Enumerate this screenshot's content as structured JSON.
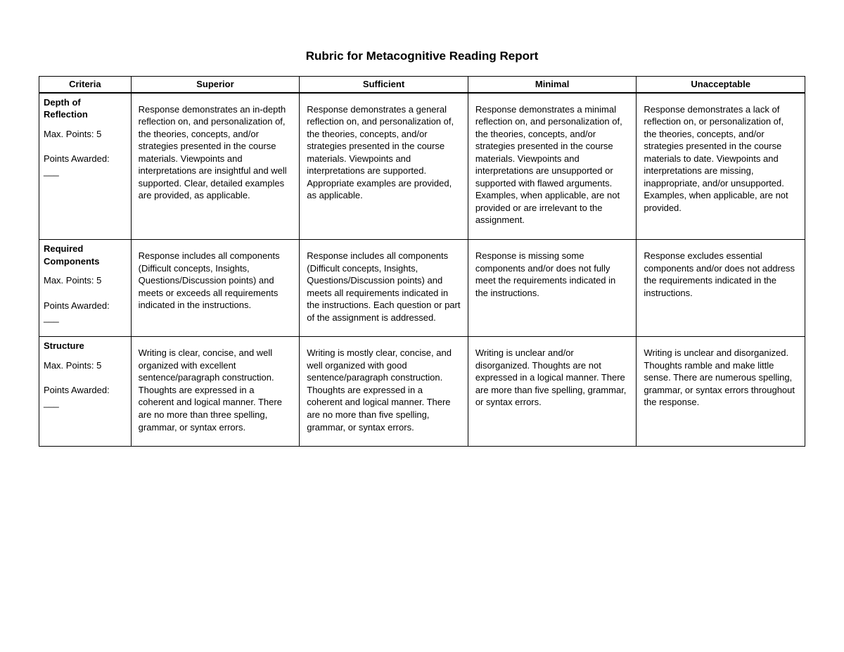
{
  "title": "Rubric for Metacognitive Reading Report",
  "columns": [
    "Criteria",
    "Superior",
    "Sufficient",
    "Minimal",
    "Unacceptable"
  ],
  "rows": [
    {
      "criteria_title": "Depth of Reflection",
      "max_points_label": "Max. Points: 5",
      "points_awarded_label": "Points Awarded: ___",
      "cells": [
        "Response demonstrates an in-depth reflection on, and personalization of, the theories, concepts, and/or strategies presented in the course materials. Viewpoints and interpretations are insightful and well supported. Clear, detailed examples are provided, as applicable.",
        "Response demonstrates a general reflection on, and personalization of, the theories, concepts, and/or strategies presented in the course materials. Viewpoints and interpretations are supported.  Appropriate examples are provided, as applicable.",
        "Response demonstrates a minimal reflection on, and personalization of, the theories, concepts, and/or strategies presented in the course materials. Viewpoints and interpretations are unsupported or supported with flawed arguments. Examples, when applicable, are not provided or are irrelevant to the assignment.",
        "Response demonstrates a lack of reflection on, or personalization of, the theories, concepts, and/or strategies presented in the course materials to date. Viewpoints and interpretations are missing, inappropriate, and/or unsupported. Examples, when applicable, are not provided."
      ]
    },
    {
      "criteria_title": "Required Components",
      "max_points_label": "Max. Points: 5",
      "points_awarded_label": "Points Awarded: ___",
      "cells": [
        "Response includes all components (Difficult concepts, Insights, Questions/Discussion points) and meets or exceeds all requirements indicated in the instructions.",
        "Response includes all components (Difficult concepts, Insights, Questions/Discussion points) and meets all requirements indicated in the instructions. Each question or part of the assignment is addressed.",
        "Response is missing some components and/or does not fully meet the requirements indicated in the instructions.",
        "Response excludes essential components and/or does not address the requirements indicated in the instructions."
      ]
    },
    {
      "criteria_title": "Structure",
      "max_points_label": "Max. Points: 5",
      "points_awarded_label": "Points Awarded: ___",
      "cells": [
        "Writing is clear, concise, and well organized with excellent sentence/paragraph construction. Thoughts are expressed in a coherent and logical manner. There are no more than three spelling, grammar, or syntax errors.",
        "Writing is mostly clear, concise, and well organized with good sentence/paragraph construction. Thoughts are expressed in a coherent and logical manner. There are no more than five spelling, grammar, or syntax errors.",
        "Writing is unclear and/or disorganized. Thoughts are not expressed in a logical manner. There are more than five spelling, grammar, or syntax errors.",
        "Writing is unclear and disorganized. Thoughts ramble and make little sense. There are numerous spelling, grammar, or syntax errors throughout the response."
      ]
    }
  ]
}
